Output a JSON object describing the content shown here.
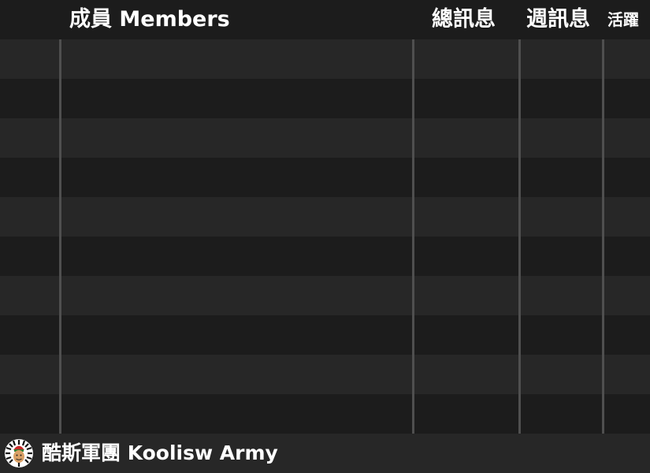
{
  "header": {
    "members_label": "成員 Members",
    "total_messages_label": "總訊息",
    "weekly_messages_label": "週訊息",
    "activity_label": "活躍"
  },
  "rows": [
    {
      "member": "",
      "total": "",
      "weekly": "",
      "active": ""
    },
    {
      "member": "",
      "total": "",
      "weekly": "",
      "active": ""
    },
    {
      "member": "",
      "total": "",
      "weekly": "",
      "active": ""
    },
    {
      "member": "",
      "total": "",
      "weekly": "",
      "active": ""
    },
    {
      "member": "",
      "total": "",
      "weekly": "",
      "active": ""
    },
    {
      "member": "",
      "total": "",
      "weekly": "",
      "active": ""
    },
    {
      "member": "",
      "total": "",
      "weekly": "",
      "active": ""
    },
    {
      "member": "",
      "total": "",
      "weekly": "",
      "active": ""
    },
    {
      "member": "",
      "total": "",
      "weekly": "",
      "active": ""
    },
    {
      "member": "",
      "total": "",
      "weekly": "",
      "active": ""
    }
  ],
  "footer": {
    "logo_icon": "koolisw-army-logo-icon",
    "title": "酷斯軍團 Koolisw Army"
  },
  "colors": {
    "background_dark": "#1c1c1c",
    "background_light": "#272727",
    "divider": "#4f4f4f",
    "text": "#ffffff"
  }
}
